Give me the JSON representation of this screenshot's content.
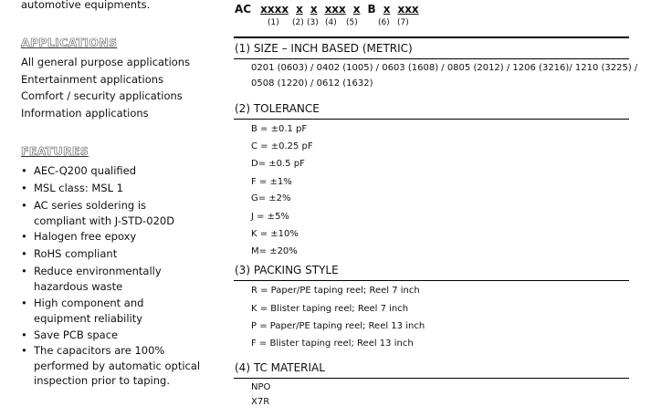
{
  "left": {
    "intro_tail": "automotive equipments.",
    "applications": {
      "heading": "APPLICATIONS",
      "items": [
        "All general purpose applications",
        "Entertainment applications",
        "Comfort / security applications",
        "Information applications"
      ]
    },
    "features": {
      "heading": "FEATURES",
      "items": [
        [
          "AEC-Q200 qualified"
        ],
        [
          "MSL class: MSL 1"
        ],
        [
          "AC series soldering is",
          "compliant with J-STD-020D"
        ],
        [
          "Halogen free epoxy"
        ],
        [
          "RoHS compliant"
        ],
        [
          "Reduce environmentally",
          "hazardous waste"
        ],
        [
          "High component and",
          "equipment reliability"
        ],
        [
          "Save PCB space"
        ],
        [
          "The capacitors are 100%",
          "performed by automatic optical",
          "inspection prior to taping."
        ]
      ]
    }
  },
  "ordering": {
    "prefix": "AC",
    "fields": [
      "xxxx",
      "x",
      "x",
      "xxx",
      "x",
      "B",
      "x",
      "xxx"
    ],
    "numbers": [
      "(1)",
      "(2)",
      "(3)",
      "(4)",
      "(5)",
      "(6)",
      "(7)"
    ]
  },
  "sections": [
    {
      "heading": "(1) SIZE – INCH BASED (METRIC)",
      "items": [
        "0201 (0603) / 0402 (1005) / 0603 (1608) / 0805 (2012) / 1206 (3216)/ 1210 (3225) /",
        "0508 (1220) / 0612 (1632)"
      ]
    },
    {
      "heading": "(2) TOLERANCE",
      "items": [
        "B = ±0.1 pF",
        "C = ±0.25 pF",
        "D= ±0.5 pF",
        "F = ±1%",
        "G= ±2%",
        "J = ±5%",
        "K = ±10%",
        "M= ±20%"
      ]
    },
    {
      "heading": "(3) PACKING STYLE",
      "items": [
        "R = Paper/PE taping reel; Reel 7 inch",
        "K = Blister taping reel; Reel 7 inch",
        "P = Paper/PE taping reel; Reel 13 inch",
        "F = Blister taping reel; Reel 13 inch"
      ]
    },
    {
      "heading": "(4) TC MATERIAL",
      "items": [
        "NPO",
        "X7R"
      ]
    }
  ]
}
